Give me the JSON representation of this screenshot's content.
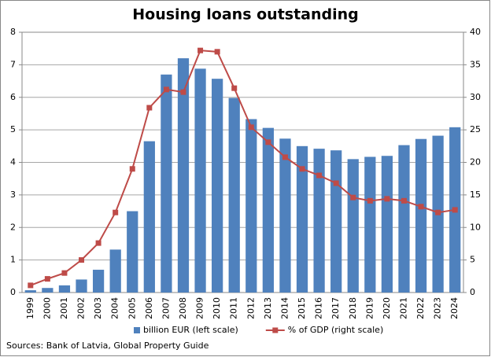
{
  "chart_data": {
    "type": "bar",
    "title": "Housing loans outstanding",
    "source": "Sources: Bank of Latvia, Global Property Guide",
    "categories": [
      "1999",
      "2000",
      "2001",
      "2002",
      "2003",
      "2004",
      "2005",
      "2006",
      "2007",
      "2008",
      "2009",
      "2010",
      "2011",
      "2012",
      "2013",
      "2014",
      "2015",
      "2016",
      "2017",
      "2018",
      "2019",
      "2020",
      "2021",
      "2022",
      "2023",
      "2024"
    ],
    "series": [
      {
        "name": "billion EUR (left scale)",
        "type": "bar",
        "color": "#4f81bd",
        "values": [
          0.07,
          0.14,
          0.22,
          0.4,
          0.7,
          1.32,
          2.5,
          4.65,
          6.7,
          7.2,
          6.88,
          6.57,
          5.98,
          5.33,
          5.06,
          4.73,
          4.5,
          4.42,
          4.37,
          4.1,
          4.17,
          4.2,
          4.53,
          4.72,
          4.82,
          5.08
        ]
      },
      {
        "name": "% of GDP (right scale)",
        "type": "line",
        "axis": "y2",
        "color": "#be4b48",
        "values": [
          1.1,
          2.1,
          3.0,
          5.0,
          7.6,
          12.3,
          19.0,
          28.4,
          31.2,
          30.8,
          37.2,
          37.0,
          31.4,
          25.4,
          23.1,
          20.8,
          19.0,
          18.0,
          16.8,
          14.6,
          14.1,
          14.4,
          14.1,
          13.2,
          12.3,
          12.7
        ]
      }
    ],
    "ylim": [
      0,
      8
    ],
    "yticks": [
      0,
      1,
      2,
      3,
      4,
      5,
      6,
      7,
      8
    ],
    "y2lim": [
      0,
      40
    ],
    "y2ticks": [
      0,
      5,
      10,
      15,
      20,
      25,
      30,
      35,
      40
    ],
    "grid": true
  }
}
